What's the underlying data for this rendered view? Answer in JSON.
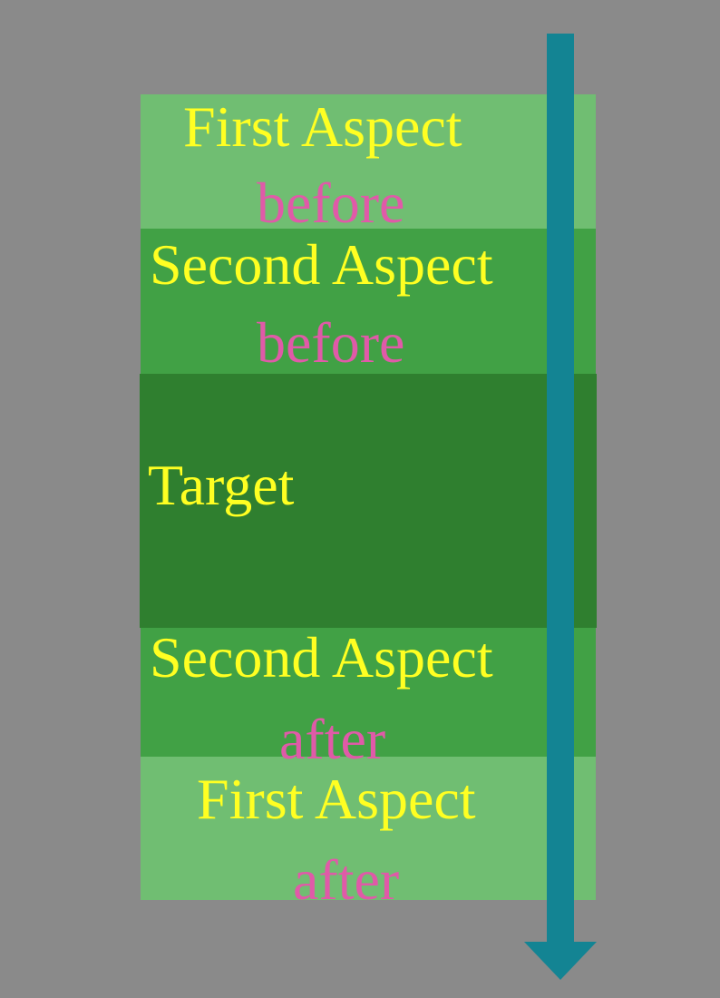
{
  "bands": {
    "first_before": {
      "title": "First Aspect",
      "sub": "before"
    },
    "second_before": {
      "title": "Second Aspect",
      "sub": "before"
    },
    "target": {
      "title": "Target"
    },
    "second_after": {
      "title": "Second Aspect",
      "sub": "after"
    },
    "first_after": {
      "title": "First Aspect",
      "sub": "after"
    }
  },
  "colors": {
    "background": "#8a8a8a",
    "outer_band": "#70be72",
    "middle_band": "#41a145",
    "target_band": "#2f7f2f",
    "title_text": "#ffff22",
    "sub_text": "#e05aa8",
    "arrow": "#138493"
  },
  "icons": {
    "arrow": "down-arrow-icon"
  }
}
